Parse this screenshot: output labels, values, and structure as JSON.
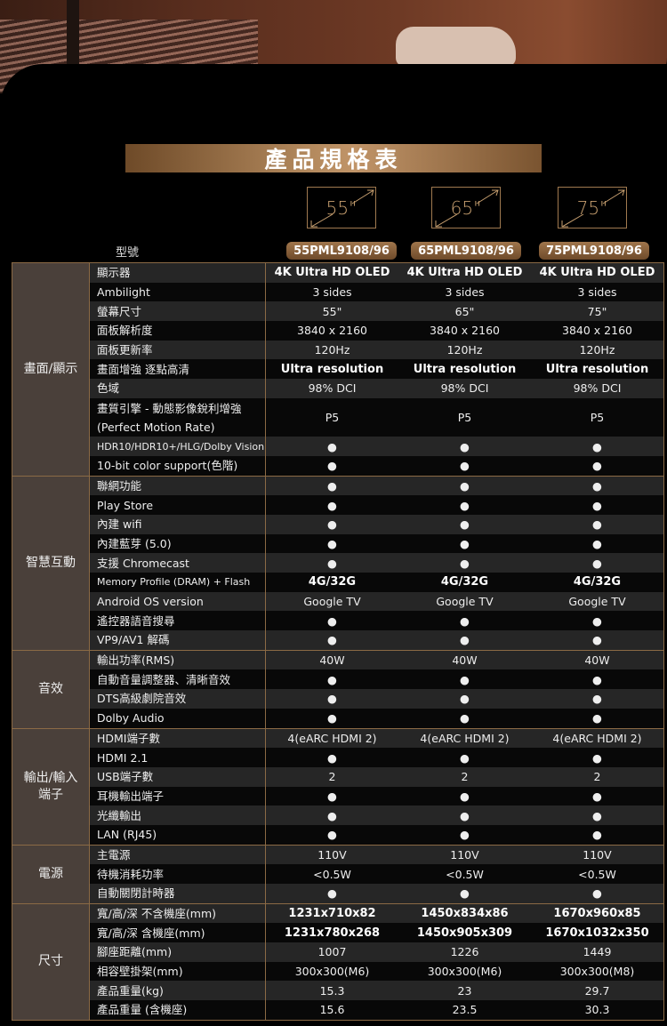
{
  "title": "產品規格表",
  "sizes": [
    "55\"",
    "65\"",
    "75\""
  ],
  "model_label": "型號",
  "models": [
    "55PML9108/96",
    "65PML9108/96",
    "75PML9108/96"
  ],
  "colors": {
    "gold": "#8b6a45",
    "category_bg": "#4a403a"
  },
  "sections": [
    {
      "category": "畫面/顯示",
      "rows": [
        {
          "label": "顯示器",
          "values": [
            "4K Ultra HD OLED",
            "4K Ultra HD OLED",
            "4K Ultra HD OLED"
          ],
          "bold": true
        },
        {
          "label": "Ambilight",
          "values": [
            "3 sides",
            "3 sides",
            "3 sides"
          ]
        },
        {
          "label": "螢幕尺寸",
          "values": [
            "55\"",
            "65\"",
            "75\""
          ]
        },
        {
          "label": "面板解析度",
          "values": [
            "3840 x 2160",
            "3840 x 2160",
            "3840 x 2160"
          ]
        },
        {
          "label": "面板更新率",
          "values": [
            "120Hz",
            "120Hz",
            "120Hz"
          ]
        },
        {
          "label": "畫面增強  逐點高清",
          "values": [
            "Ultra resolution",
            "Ultra resolution",
            "Ultra resolution"
          ],
          "bold": true
        },
        {
          "label": "色域",
          "values": [
            "98% DCI",
            "98% DCI",
            "98% DCI"
          ]
        },
        {
          "label": "畫質引擎 - 動態影像銳利增強 (Perfect Motion Rate)",
          "values": [
            "P5",
            "P5",
            "P5"
          ],
          "double": true
        },
        {
          "label": "HDR10/HDR10+/HLG/Dolby Vision",
          "values": [
            "●",
            "●",
            "●"
          ],
          "small": true
        },
        {
          "label": "10-bit color support(色階)",
          "values": [
            "●",
            "●",
            "●"
          ]
        }
      ]
    },
    {
      "category": "智慧互動",
      "rows": [
        {
          "label": "聯網功能",
          "values": [
            "●",
            "●",
            "●"
          ]
        },
        {
          "label": "Play  Store",
          "values": [
            "●",
            "●",
            "●"
          ]
        },
        {
          "label": "內建 wifi",
          "values": [
            "●",
            "●",
            "●"
          ]
        },
        {
          "label": "內建藍芽 (5.0)",
          "values": [
            "●",
            "●",
            "●"
          ]
        },
        {
          "label": "支援 Chromecast",
          "values": [
            "●",
            "●",
            "●"
          ]
        },
        {
          "label": "Memory Profile (DRAM) + Flash",
          "values": [
            "4G/32G",
            "4G/32G",
            "4G/32G"
          ],
          "bold": true,
          "small": true
        },
        {
          "label": "Android OS version",
          "values": [
            "Google TV",
            "Google TV",
            "Google TV"
          ]
        },
        {
          "label": "遙控器語音搜尋",
          "values": [
            "●",
            "●",
            "●"
          ]
        },
        {
          "label": "VP9/AV1 解碼",
          "values": [
            "●",
            "●",
            "●"
          ]
        }
      ]
    },
    {
      "category": "音效",
      "rows": [
        {
          "label": "輸出功率(RMS)",
          "values": [
            "40W",
            "40W",
            "40W"
          ]
        },
        {
          "label": "自動音量調整器、清晰音效",
          "values": [
            "●",
            "●",
            "●"
          ]
        },
        {
          "label": "DTS高級劇院音效",
          "values": [
            "●",
            "●",
            "●"
          ]
        },
        {
          "label": "Dolby Audio",
          "values": [
            "●",
            "●",
            "●"
          ]
        }
      ]
    },
    {
      "category": "輸出/輸入 端子",
      "rows": [
        {
          "label": "HDMI端子數",
          "values": [
            "4(eARC HDMI 2)",
            "4(eARC HDMI 2)",
            "4(eARC HDMI 2)"
          ]
        },
        {
          "label": "HDMI 2.1",
          "values": [
            "●",
            "●",
            "●"
          ]
        },
        {
          "label": "USB端子數",
          "values": [
            "2",
            "2",
            "2"
          ]
        },
        {
          "label": "耳機輸出端子",
          "values": [
            "●",
            "●",
            "●"
          ]
        },
        {
          "label": "光纖輸出",
          "values": [
            "●",
            "●",
            "●"
          ]
        },
        {
          "label": "LAN (RJ45)",
          "values": [
            "●",
            "●",
            "●"
          ]
        }
      ]
    },
    {
      "category": "電源",
      "rows": [
        {
          "label": "主電源",
          "values": [
            "110V",
            "110V",
            "110V"
          ]
        },
        {
          "label": "待機消耗功率",
          "values": [
            "<0.5W",
            "<0.5W",
            "<0.5W"
          ]
        },
        {
          "label": "自動關閉計時器",
          "values": [
            "●",
            "●",
            "●"
          ]
        }
      ]
    },
    {
      "category": "尺寸",
      "rows": [
        {
          "label": "寬/高/深  不含機座(mm)",
          "values": [
            "1231x710x82",
            "1450x834x86",
            "1670x960x85"
          ],
          "bold": true
        },
        {
          "label": "寬/高/深  含機座(mm)",
          "values": [
            "1231x780x268",
            "1450x905x309",
            "1670x1032x350"
          ],
          "bold": true
        },
        {
          "label": "腳座距離(mm)",
          "values": [
            "1007",
            "1226",
            "1449"
          ]
        },
        {
          "label": "相容壁掛架(mm)",
          "values": [
            "300x300(M6)",
            "300x300(M6)",
            "300x300(M8)"
          ]
        },
        {
          "label": "產品重量(kg)",
          "values": [
            "15.3",
            "23",
            "29.7"
          ]
        },
        {
          "label": "產品重量 (含機座)",
          "values": [
            "15.6",
            "23.5",
            "30.3"
          ]
        }
      ]
    }
  ]
}
